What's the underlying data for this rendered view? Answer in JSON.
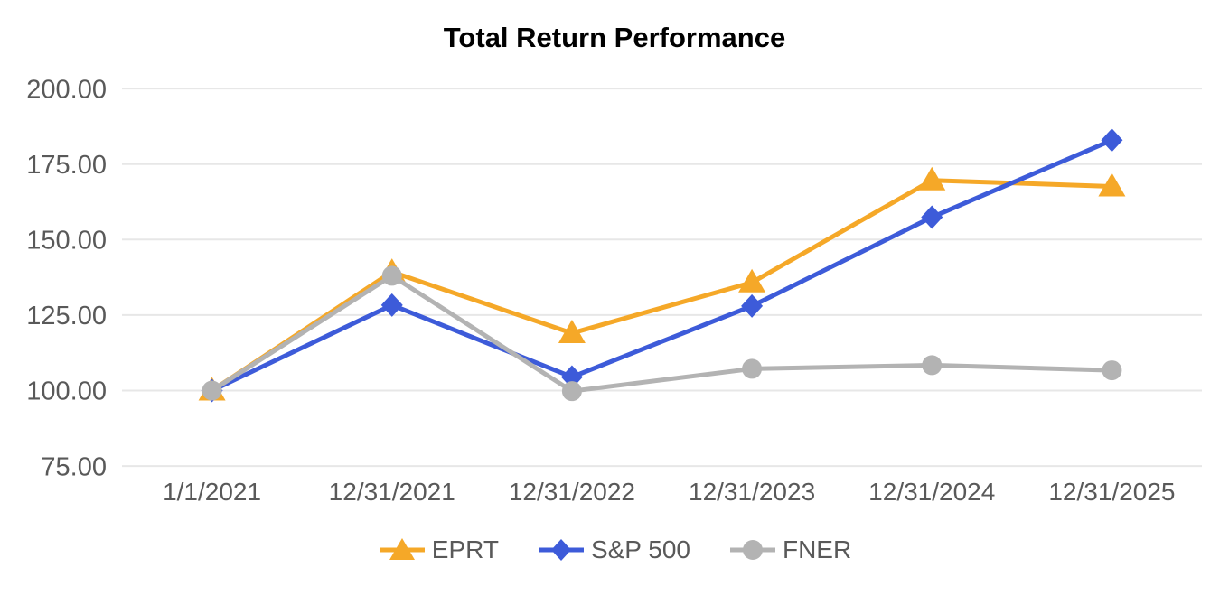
{
  "chart_data": {
    "type": "line",
    "title": "Total Return Performance",
    "x": [
      "1/1/2021",
      "12/31/2021",
      "12/31/2022",
      "12/31/2023",
      "12/31/2024",
      "12/31/2025"
    ],
    "series": [
      {
        "name": "EPRT",
        "marker": "triangle",
        "color": "#F5A828",
        "values": [
          100.0,
          139.3,
          119.0,
          135.8,
          169.6,
          167.6
        ]
      },
      {
        "name": "S&P 500",
        "marker": "diamond",
        "color": "#3D5BD9",
        "values": [
          100.0,
          128.3,
          104.5,
          128.0,
          157.4,
          182.9
        ]
      },
      {
        "name": "FNER",
        "marker": "circle",
        "color": "#B3B3B3",
        "values": [
          100.0,
          138.0,
          99.8,
          107.2,
          108.4,
          106.7
        ]
      }
    ],
    "y_ticks": [
      200,
      175,
      150,
      125,
      100,
      75
    ],
    "y_tick_labels": [
      "200.00",
      "175.00",
      "150.00",
      "125.00",
      "100.00",
      "75.00"
    ],
    "ylim": [
      75,
      200
    ],
    "grid": true,
    "legend_position": "bottom",
    "colors": {
      "gridline": "#E7E7E7",
      "axis_text": "#595959",
      "title_text": "#000000",
      "background": "#FFFFFF"
    }
  }
}
